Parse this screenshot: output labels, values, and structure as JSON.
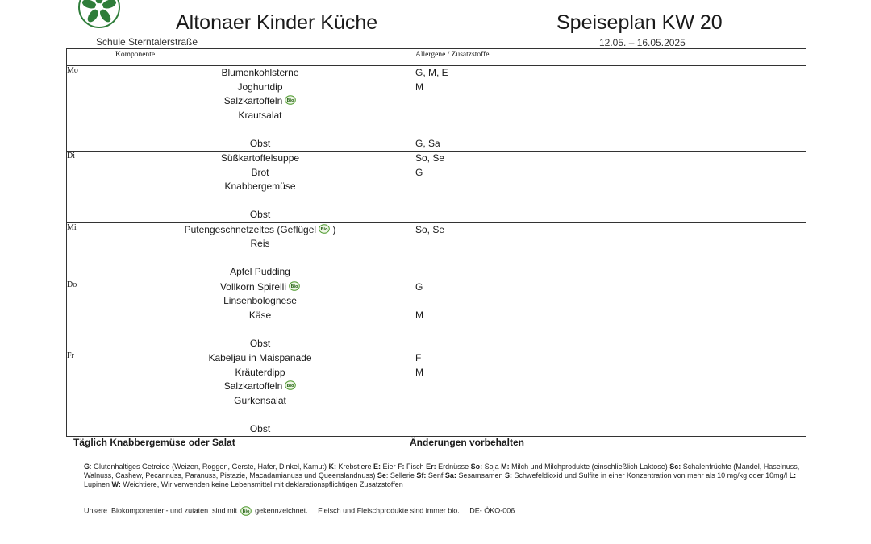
{
  "header": {
    "brand": "Altonaer Kinder Küche",
    "school": "Schule Sterntalerstraße",
    "title": "Speiseplan KW 20",
    "dates": "12.05. – 16.05.2025"
  },
  "table": {
    "col_component": "Komponente",
    "col_allergens": "Allergene / Zusatzstoffe",
    "days": [
      {
        "day": "Mo",
        "lines": [
          {
            "comp": "Blumenkohlsterne",
            "all": "G, M, E",
            "bio": false
          },
          {
            "comp": "Joghurtdip",
            "all": "M",
            "bio": false
          },
          {
            "comp": "Salzkartoffeln",
            "all": "",
            "bio": true
          },
          {
            "comp": "Krautsalat",
            "all": "",
            "bio": false
          },
          {
            "comp": "",
            "all": "",
            "bio": false
          },
          {
            "comp": "Obst",
            "all": "G, Sa",
            "bio": false
          }
        ]
      },
      {
        "day": "Di",
        "lines": [
          {
            "comp": "Süßkartoffelsuppe",
            "all": "So, Se",
            "bio": false
          },
          {
            "comp": "Brot",
            "all": "G",
            "bio": false
          },
          {
            "comp": "Knabbergemüse",
            "all": "",
            "bio": false
          },
          {
            "comp": "",
            "all": "",
            "bio": false
          },
          {
            "comp": "Obst",
            "all": "",
            "bio": false
          }
        ]
      },
      {
        "day": "Mi",
        "lines": [
          {
            "comp": "Putengeschnetzeltes (Geflügel",
            "comp_after": " )",
            "all": "So, Se",
            "bio": true
          },
          {
            "comp": "Reis",
            "all": "",
            "bio": false
          },
          {
            "comp": "",
            "all": "",
            "bio": false
          },
          {
            "comp": "Apfel Pudding",
            "all": "",
            "bio": false
          }
        ]
      },
      {
        "day": "Do",
        "lines": [
          {
            "comp": "Vollkorn Spirelli",
            "all": "G",
            "bio": true
          },
          {
            "comp": "Linsenbolognese",
            "all": "",
            "bio": false
          },
          {
            "comp": "Käse",
            "all": "M",
            "bio": false
          },
          {
            "comp": "",
            "all": "",
            "bio": false
          },
          {
            "comp": "Obst",
            "all": "",
            "bio": false
          }
        ]
      },
      {
        "day": "Fr",
        "lines": [
          {
            "comp": "Kabeljau in Maispanade",
            "all": "F",
            "bio": false
          },
          {
            "comp": "Kräuterdipp",
            "all": "M",
            "bio": false
          },
          {
            "comp": "Salzkartoffeln",
            "all": "",
            "bio": true
          },
          {
            "comp": "Gurkensalat",
            "all": "",
            "bio": false
          },
          {
            "comp": "",
            "all": "",
            "bio": false
          },
          {
            "comp": "Obst",
            "all": "",
            "bio": false
          }
        ]
      }
    ]
  },
  "footer": {
    "daily": "Täglich Knabbergemüse oder Salat",
    "changes": "Änderungen vorbehalten",
    "legend": [
      {
        "code": "G",
        "text": ": Glutenhaltiges Getreide (Weizen, Roggen, Gerste, Hafer, Dinkel, Kamut) "
      },
      {
        "code": "K:",
        "text": " Krebstiere   "
      },
      {
        "code": "E:",
        "text": " Eier "
      },
      {
        "code": "F:",
        "text": " Fisch "
      },
      {
        "code": "Er:",
        "text": " Erdnüsse "
      },
      {
        "code": "So:",
        "text": " Soja  "
      },
      {
        "code": "M:",
        "text": " Milch und Milchprodukte (einschließlich Laktose) "
      },
      {
        "code": "Sc:",
        "text": " Schalenfrüchte (Mandel, Haselnuss, Walnuss, Cashew, Pecannuss, Paranuss, Pistazie, Macadamianuss und Queenslandnuss) "
      },
      {
        "code": "Se",
        "text": ": Sellerie  "
      },
      {
        "code": "Sf:",
        "text": " Senf "
      },
      {
        "code": "Sa:",
        "text": " Sesamsamen "
      },
      {
        "code": "S:",
        "text": " Schwefeldioxid und Sulfite in einer Konzentration von mehr als 10 mg/kg oder 10mg/l "
      },
      {
        "code": "L:",
        "text": " Lupinen "
      },
      {
        "code": "W:",
        "text": " Weichtiere, Wir verwenden keine Lebensmittel mit deklarationspflichtigen Zusatzstoffen"
      }
    ],
    "bio_note_before": "Unsere  Biokomponenten- und zutaten  sind mit",
    "bio_note_after": "gekennzeichnet.     Fleisch und Fleischprodukte sind immer bio.     DE- ÖKO-006"
  },
  "icons": {
    "logo": "star-flower-logo-icon",
    "bio": "bio-seal-icon"
  },
  "colors": {
    "logo_green": "#2f7d3a",
    "bio_green": "#4f9a2f"
  }
}
